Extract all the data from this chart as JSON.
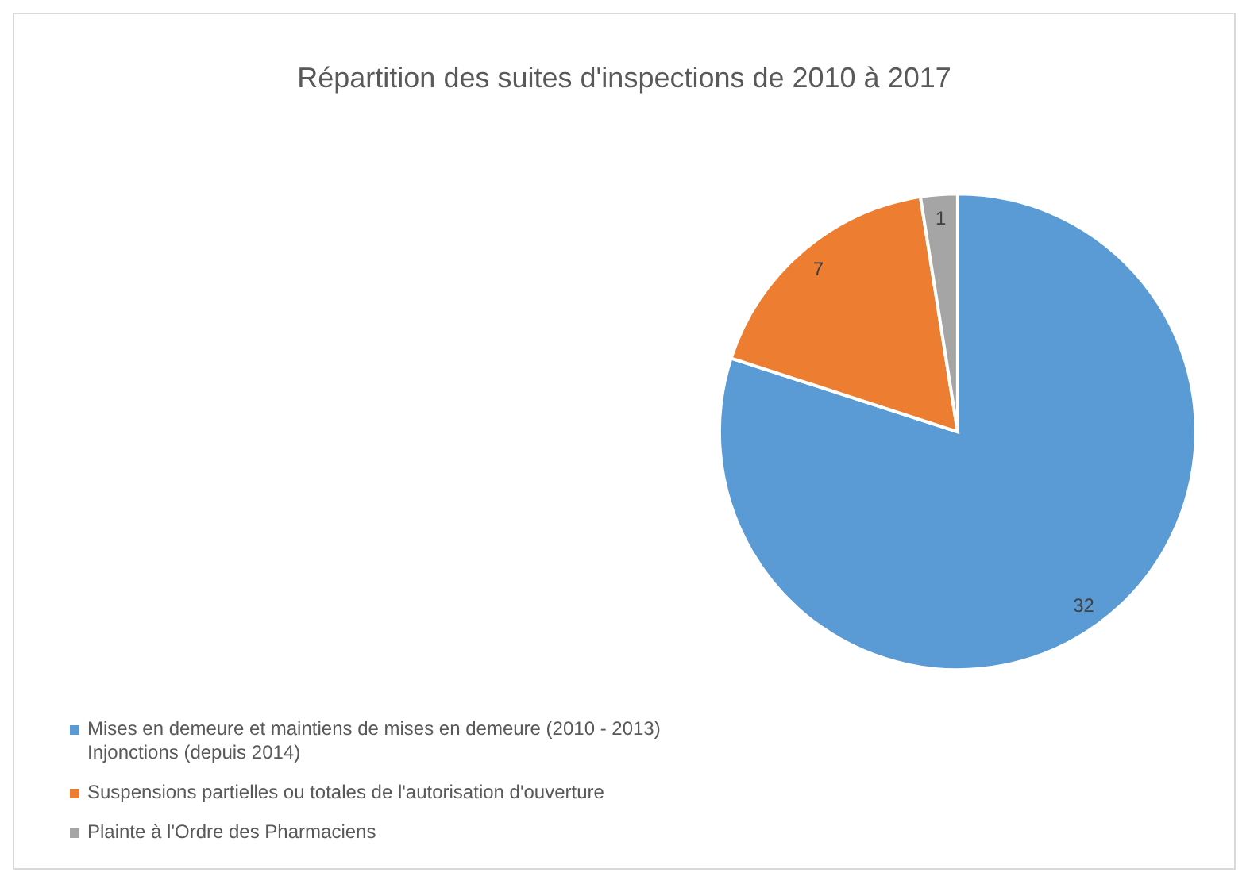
{
  "chart_data": {
    "type": "pie",
    "title": "Répartition des suites d'inspections de 2010 à 2017",
    "categories": [
      "Mises en demeure et maintiens de mises en demeure (2010 - 2013)    Injonctions (depuis 2014)",
      "Suspensions partielles ou totales de l'autorisation d'ouverture",
      "Plainte à l'Ordre des Pharmaciens"
    ],
    "values": [
      32,
      7,
      1
    ],
    "colors": [
      "#5b9bd5",
      "#ed7d31",
      "#a5a5a5"
    ],
    "data_labels": true,
    "legend": "bottom left"
  }
}
